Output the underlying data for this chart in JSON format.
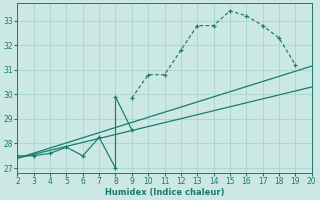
{
  "xlabel": "Humidex (Indice chaleur)",
  "xlim": [
    2,
    20
  ],
  "ylim": [
    26.8,
    33.7
  ],
  "yticks": [
    27,
    28,
    29,
    30,
    31,
    32,
    33
  ],
  "xticks": [
    2,
    3,
    4,
    5,
    6,
    7,
    8,
    9,
    10,
    11,
    12,
    13,
    14,
    15,
    16,
    17,
    18,
    19,
    20
  ],
  "bg_color": "#cce8e4",
  "grid_color": "#aad4cf",
  "line_color": "#1a7a6e",
  "main_curve_x": [
    9,
    10,
    11,
    12,
    13,
    14,
    15,
    16,
    17,
    18,
    19
  ],
  "main_curve_y": [
    29.85,
    30.8,
    30.8,
    31.8,
    32.8,
    32.8,
    33.4,
    33.2,
    32.8,
    32.3,
    31.2
  ],
  "zigzag_x": [
    2,
    3,
    4,
    5,
    6,
    7,
    8,
    8,
    9
  ],
  "zigzag_y": [
    27.5,
    27.5,
    27.6,
    27.85,
    27.5,
    28.25,
    27.0,
    29.9,
    28.55
  ],
  "line3_x": [
    2,
    20
  ],
  "line3_y": [
    27.4,
    31.15
  ],
  "line4_x": [
    2,
    20
  ],
  "line4_y": [
    27.4,
    30.3
  ]
}
